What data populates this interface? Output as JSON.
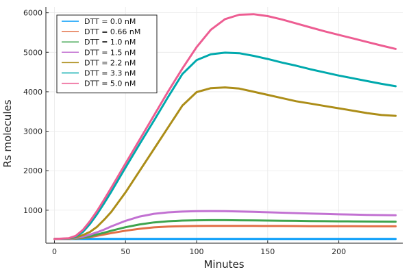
{
  "chart_data": {
    "type": "line",
    "title": "",
    "xlabel": "Minutes",
    "ylabel": "Rs molecules",
    "xlim": [
      -6,
      245
    ],
    "ylim": [
      165,
      6150
    ],
    "xticks": [
      0,
      50,
      100,
      150,
      200
    ],
    "yticks": [
      1000,
      2000,
      3000,
      4000,
      5000,
      6000
    ],
    "grid": true,
    "legend_position": "top-left",
    "x": [
      0,
      10,
      15,
      20,
      25,
      30,
      35,
      40,
      50,
      60,
      70,
      80,
      90,
      100,
      110,
      120,
      130,
      140,
      150,
      160,
      170,
      180,
      190,
      200,
      210,
      220,
      230,
      240
    ],
    "series": [
      {
        "name": "DTT = 0.0 nM",
        "color": "#009af9",
        "values": [
          270,
          270,
          270,
          270,
          270,
          270,
          270,
          270,
          270,
          270,
          270,
          270,
          270,
          270,
          270,
          270,
          270,
          270,
          270,
          270,
          270,
          270,
          270,
          270,
          270,
          270,
          270,
          270
        ]
      },
      {
        "name": "DTT = 0.66 nM",
        "color": "#e26f46",
        "values": [
          270,
          272,
          280,
          295,
          320,
          350,
          385,
          420,
          480,
          530,
          565,
          585,
          595,
          600,
          602,
          603,
          603,
          602,
          601,
          600,
          598,
          596,
          595,
          594,
          593,
          592,
          592,
          592
        ]
      },
      {
        "name": "DTT = 1.0 nM",
        "color": "#3da44d",
        "values": [
          270,
          273,
          285,
          305,
          340,
          385,
          430,
          480,
          570,
          640,
          690,
          720,
          738,
          745,
          748,
          748,
          745,
          742,
          738,
          734,
          730,
          726,
          722,
          719,
          716,
          713,
          711,
          710
        ]
      },
      {
        "name": "DTT = 1.5 nM",
        "color": "#c271d2",
        "values": [
          270,
          275,
          295,
          330,
          380,
          440,
          510,
          590,
          730,
          840,
          910,
          945,
          965,
          975,
          978,
          975,
          968,
          958,
          948,
          937,
          926,
          915,
          905,
          896,
          888,
          882,
          876,
          872
        ]
      },
      {
        "name": "DTT = 2.2 nM",
        "color": "#ac8d18",
        "values": [
          270,
          280,
          310,
          370,
          450,
          580,
          760,
          960,
          1450,
          2000,
          2550,
          3100,
          3650,
          3990,
          4090,
          4110,
          4080,
          4000,
          3920,
          3840,
          3760,
          3700,
          3640,
          3580,
          3520,
          3460,
          3410,
          3390
        ]
      },
      {
        "name": "DTT = 3.3 nM",
        "color": "#00a9ad",
        "values": [
          270,
          285,
          330,
          450,
          650,
          900,
          1180,
          1470,
          2080,
          2680,
          3270,
          3870,
          4450,
          4800,
          4950,
          4990,
          4975,
          4910,
          4830,
          4740,
          4660,
          4570,
          4490,
          4410,
          4340,
          4270,
          4200,
          4140
        ]
      },
      {
        "name": "DTT = 5.0 nM",
        "color": "#ed5d92",
        "values": [
          270,
          290,
          350,
          500,
          720,
          980,
          1270,
          1570,
          2180,
          2790,
          3400,
          4010,
          4590,
          5130,
          5570,
          5840,
          5950,
          5965,
          5915,
          5830,
          5730,
          5630,
          5530,
          5440,
          5350,
          5260,
          5170,
          5085
        ]
      }
    ]
  }
}
